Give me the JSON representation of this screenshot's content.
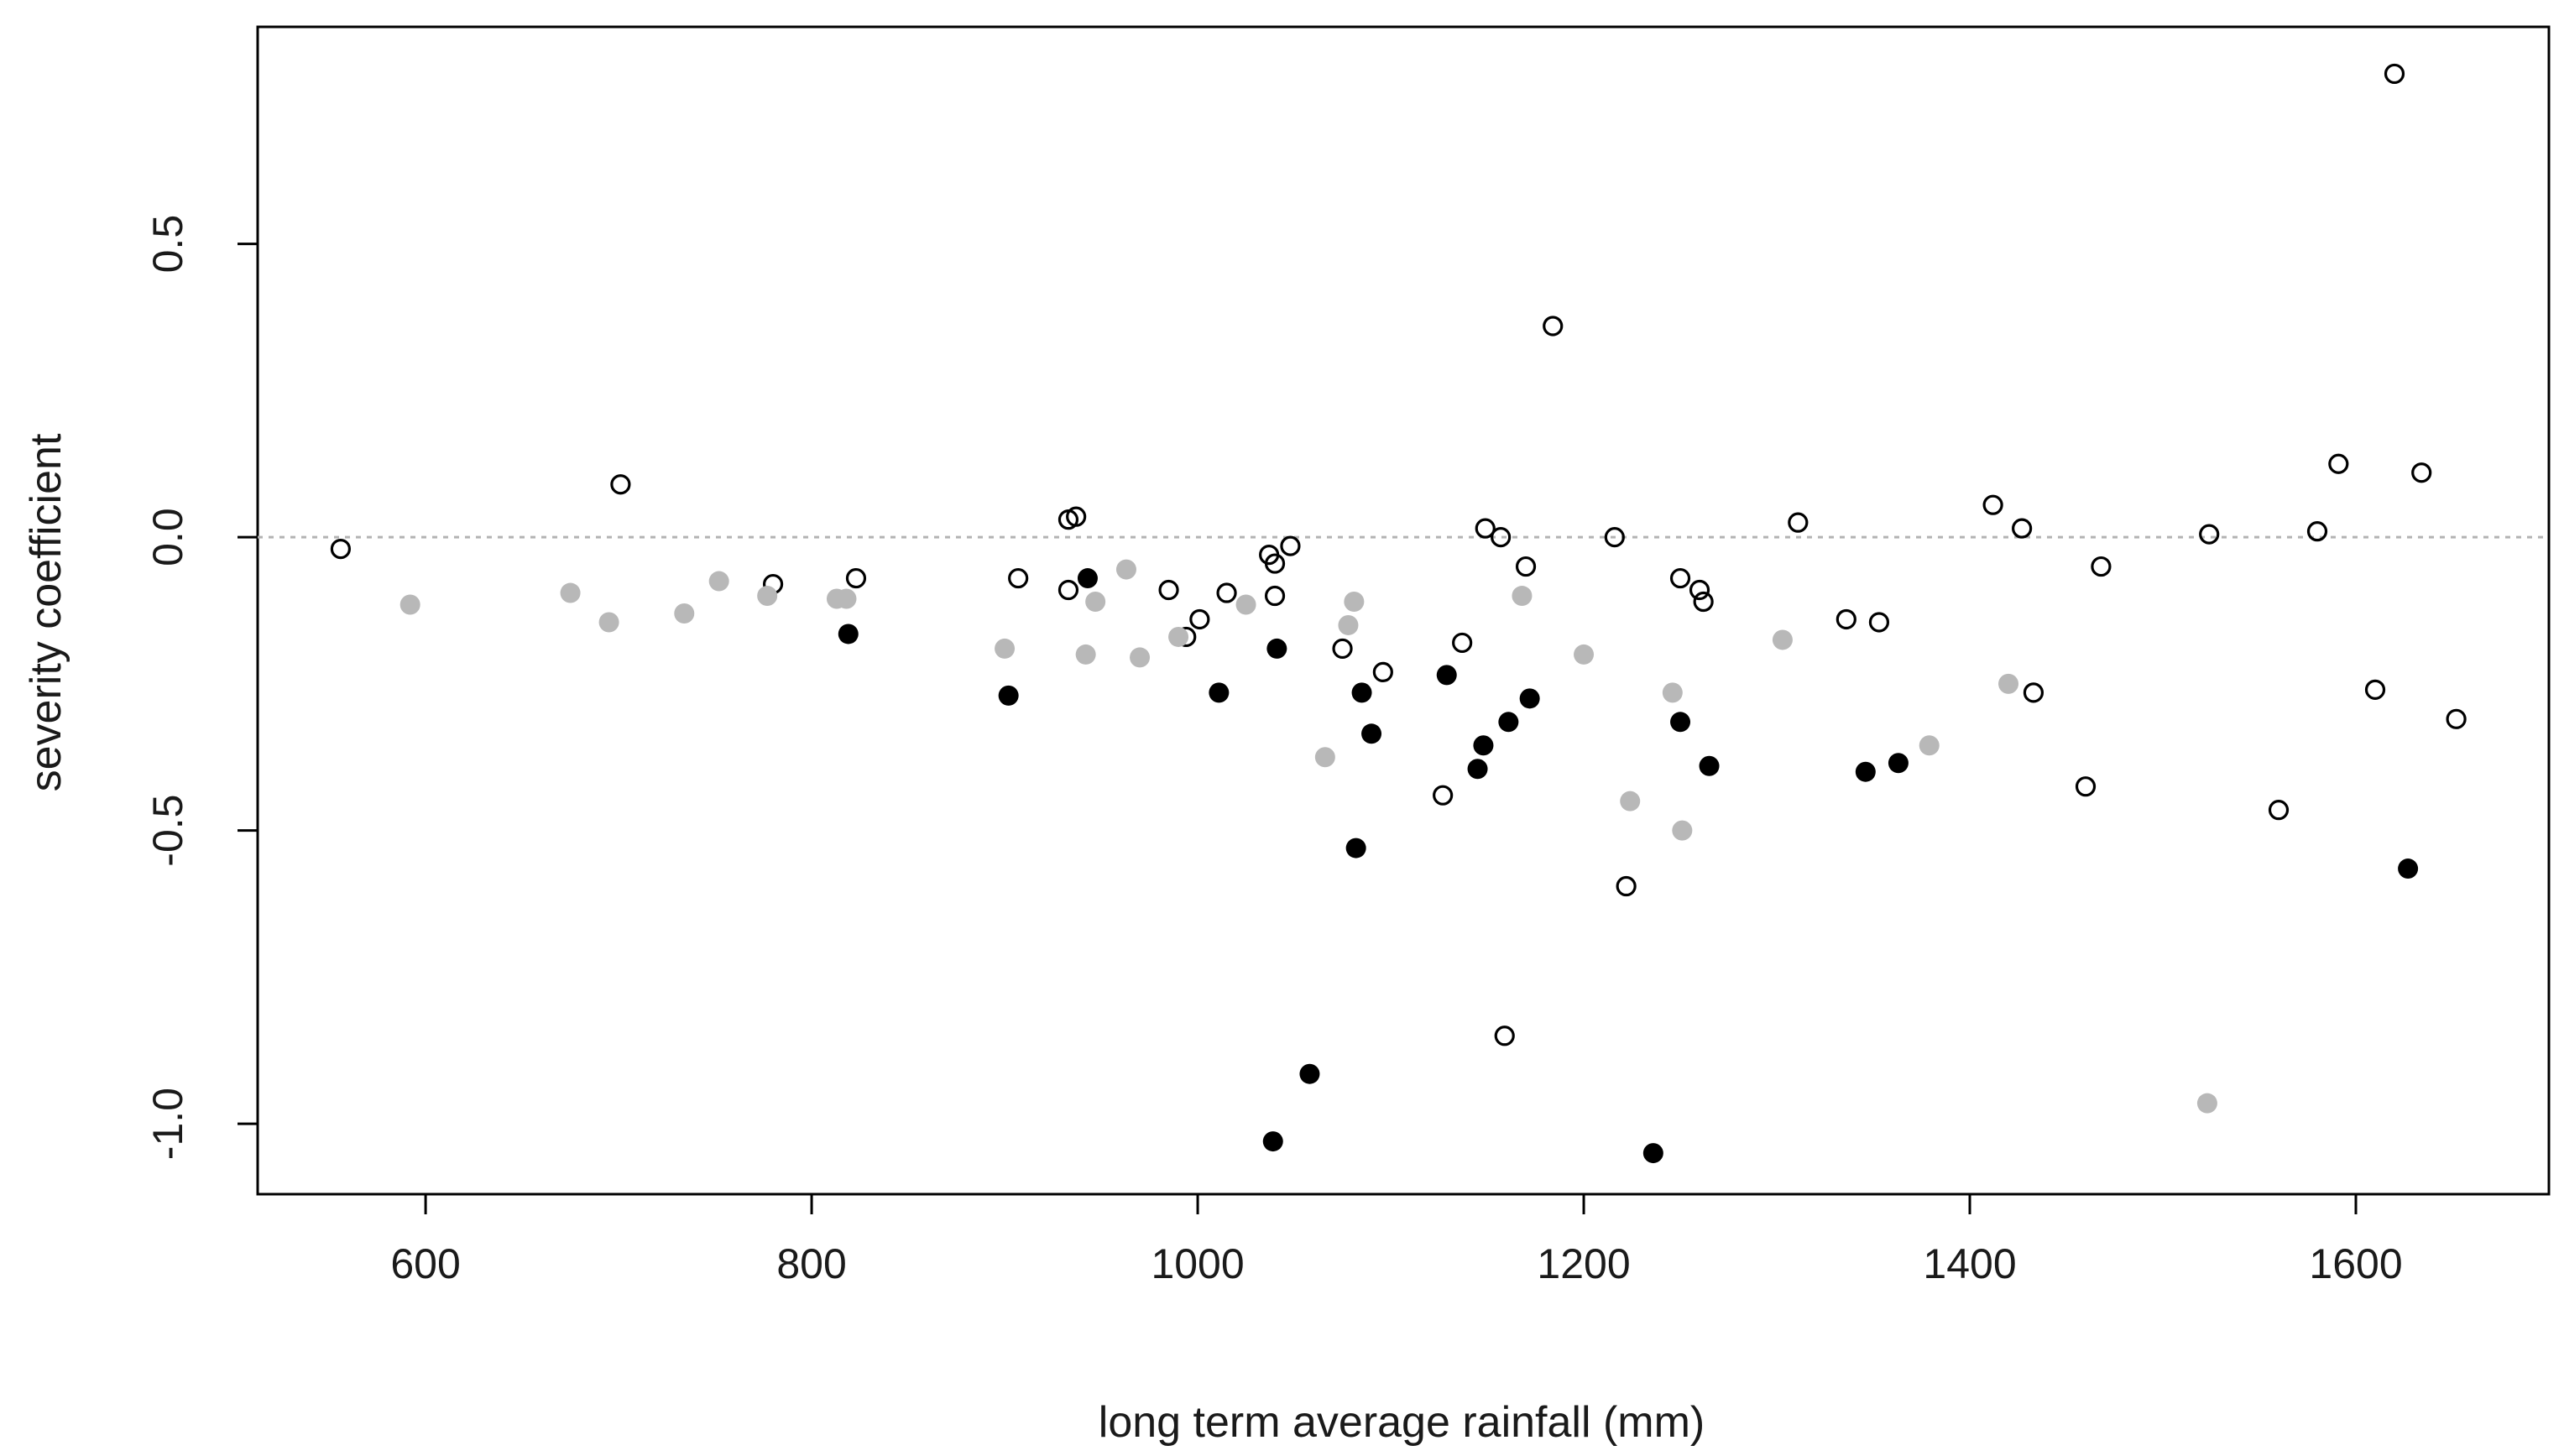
{
  "chart_data": {
    "type": "scatter",
    "title": "",
    "xlabel": "long term average rainfall (mm)",
    "ylabel": "severity coefficient",
    "xlim": [
      513,
      1700
    ],
    "ylim": [
      -1.12,
      0.87
    ],
    "x_ticks": [
      600,
      800,
      1000,
      1200,
      1400,
      1600
    ],
    "x_tick_labels": [
      "600",
      "800",
      "1000",
      "1200",
      "1400",
      "1600"
    ],
    "y_ticks": [
      -1.0,
      -0.5,
      0.0,
      0.5
    ],
    "y_tick_labels": [
      "-1.0",
      "-0.5",
      "0.0",
      "0.5"
    ],
    "reference_line": {
      "y": 0.0,
      "style": "dotted",
      "color": "#b3b3b3"
    },
    "series": [
      {
        "name": "open",
        "marker": "open-circle",
        "color": "#000000",
        "points": [
          [
            556,
            -0.02
          ],
          [
            701,
            0.09
          ],
          [
            780,
            -0.08
          ],
          [
            823,
            -0.07
          ],
          [
            907,
            -0.07
          ],
          [
            933,
            0.03
          ],
          [
            937,
            0.035
          ],
          [
            933,
            -0.09
          ],
          [
            985,
            -0.09
          ],
          [
            994,
            -0.17
          ],
          [
            1001,
            -0.14
          ],
          [
            1015,
            -0.095
          ],
          [
            1037,
            -0.03
          ],
          [
            1040,
            -0.045
          ],
          [
            1040,
            -0.1
          ],
          [
            1048,
            -0.015
          ],
          [
            1075,
            -0.19
          ],
          [
            1096,
            -0.23
          ],
          [
            1127,
            -0.44
          ],
          [
            1137,
            -0.18
          ],
          [
            1149,
            0.015
          ],
          [
            1157,
            0.0
          ],
          [
            1170,
            -0.05
          ],
          [
            1184,
            0.36
          ],
          [
            1159,
            -0.85
          ],
          [
            1216,
            0.0
          ],
          [
            1222,
            -0.595
          ],
          [
            1250,
            -0.07
          ],
          [
            1260,
            -0.09
          ],
          [
            1262,
            -0.11
          ],
          [
            1311,
            0.025
          ],
          [
            1336,
            -0.14
          ],
          [
            1353,
            -0.145
          ],
          [
            1412,
            0.055
          ],
          [
            1427,
            0.015
          ],
          [
            1433,
            -0.265
          ],
          [
            1460,
            -0.425
          ],
          [
            1468,
            -0.05
          ],
          [
            1524,
            0.005
          ],
          [
            1560,
            -0.465
          ],
          [
            1580,
            0.01
          ],
          [
            1591,
            0.125
          ],
          [
            1610,
            -0.26
          ],
          [
            1620,
            0.79
          ],
          [
            1634,
            0.11
          ],
          [
            1652,
            -0.31
          ]
        ]
      },
      {
        "name": "grey",
        "marker": "filled-circle",
        "color": "#b8b8b8",
        "points": [
          [
            592,
            -0.115
          ],
          [
            675,
            -0.095
          ],
          [
            695,
            -0.145
          ],
          [
            734,
            -0.13
          ],
          [
            752,
            -0.075
          ],
          [
            777,
            -0.1
          ],
          [
            813,
            -0.105
          ],
          [
            818,
            -0.105
          ],
          [
            900,
            -0.19
          ],
          [
            942,
            -0.2
          ],
          [
            947,
            -0.11
          ],
          [
            963,
            -0.055
          ],
          [
            970,
            -0.205
          ],
          [
            990,
            -0.17
          ],
          [
            1025,
            -0.115
          ],
          [
            1066,
            -0.375
          ],
          [
            1078,
            -0.15
          ],
          [
            1081,
            -0.11
          ],
          [
            1168,
            -0.1
          ],
          [
            1200,
            -0.2
          ],
          [
            1224,
            -0.45
          ],
          [
            1246,
            -0.265
          ],
          [
            1251,
            -0.5
          ],
          [
            1303,
            -0.175
          ],
          [
            1379,
            -0.355
          ],
          [
            1420,
            -0.25
          ],
          [
            1523,
            -0.965
          ]
        ]
      },
      {
        "name": "black",
        "marker": "filled-circle",
        "color": "#000000",
        "points": [
          [
            819,
            -0.165
          ],
          [
            902,
            -0.27
          ],
          [
            943,
            -0.07
          ],
          [
            1011,
            -0.265
          ],
          [
            1041,
            -0.19
          ],
          [
            1039,
            -1.03
          ],
          [
            1058,
            -0.915
          ],
          [
            1082,
            -0.53
          ],
          [
            1085,
            -0.265
          ],
          [
            1090,
            -0.335
          ],
          [
            1129,
            -0.235
          ],
          [
            1145,
            -0.395
          ],
          [
            1148,
            -0.355
          ],
          [
            1161,
            -0.315
          ],
          [
            1172,
            -0.275
          ],
          [
            1236,
            -1.05
          ],
          [
            1250,
            -0.315
          ],
          [
            1265,
            -0.39
          ],
          [
            1346,
            -0.4
          ],
          [
            1363,
            -0.385
          ],
          [
            1627,
            -0.565
          ]
        ]
      }
    ]
  }
}
